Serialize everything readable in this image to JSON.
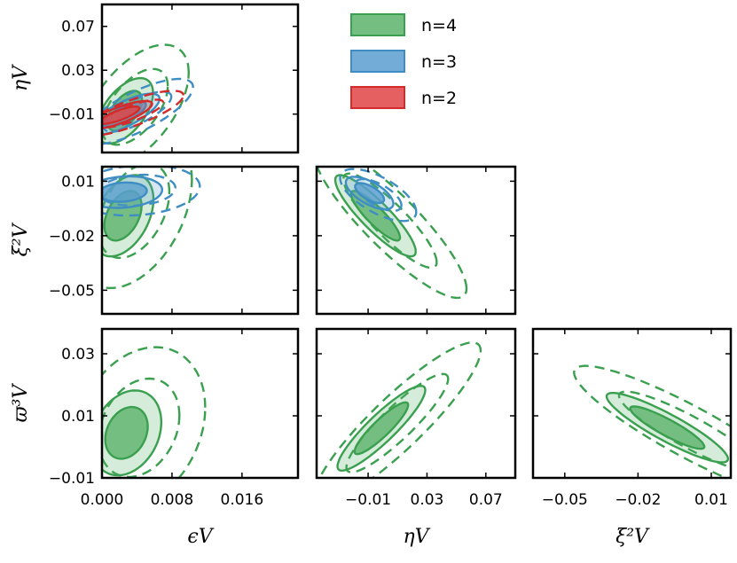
{
  "chart_data": {
    "type": "corner",
    "legend": {
      "placement": "top-right",
      "entries": [
        {
          "label": "n=4",
          "color": "#3aa04f",
          "fill": "#5cb36b"
        },
        {
          "label": "n=3",
          "color": "#3e8ec4",
          "fill": "#5a9fd0"
        },
        {
          "label": "n=2",
          "color": "#d42a2a",
          "fill": "#e04545"
        }
      ]
    },
    "parameters": [
      {
        "key": "epsilon",
        "label": "ϵV",
        "range": [
          0.0,
          0.0224
        ],
        "ticks": [
          0.0,
          0.008,
          0.016
        ],
        "tick_labels": [
          "0.000",
          "0.008",
          "0.016"
        ]
      },
      {
        "key": "eta",
        "label": "ηV",
        "range": [
          -0.045,
          0.09
        ],
        "ticks": [
          -0.01,
          0.03,
          0.07
        ],
        "tick_labels": [
          "−0.01",
          "0.03",
          "0.07"
        ]
      },
      {
        "key": "xi",
        "label": "ξ²V",
        "range": [
          -0.063,
          0.018
        ],
        "ticks": [
          -0.05,
          -0.02,
          0.01
        ],
        "tick_labels": [
          "−0.05",
          "−0.02",
          "0.01"
        ]
      },
      {
        "key": "varpi",
        "label": "ϖ³V",
        "range": [
          -0.01,
          0.038
        ],
        "ticks": [
          -0.01,
          0.01,
          0.03
        ],
        "tick_labels": [
          "−0.01",
          "0.01",
          "0.03"
        ]
      }
    ],
    "panels": [
      {
        "x": "epsilon",
        "y": "eta",
        "contours": [
          {
            "series": "n=4",
            "center": [
              0.0026,
              -0.007
            ],
            "sigma": [
              0.0013,
              0.012
            ],
            "rho": 0.55
          },
          {
            "series": "n=3",
            "center": [
              0.0026,
              -0.01
            ],
            "sigma": [
              0.0016,
              0.0075
            ],
            "rho": 0.75
          },
          {
            "series": "n=2",
            "center": [
              0.002,
              -0.011
            ],
            "sigma": [
              0.0015,
              0.0052
            ],
            "rho": 0.8
          }
        ]
      },
      {
        "x": "epsilon",
        "y": "xi",
        "contours": [
          {
            "series": "n=4",
            "center": [
              0.0024,
              -0.009
            ],
            "sigma": [
              0.0014,
              0.009
            ],
            "rho": 0.4
          },
          {
            "series": "n=3",
            "center": [
              0.0024,
              0.004
            ],
            "sigma": [
              0.0018,
              0.0035
            ],
            "rho": 0.15
          }
        ]
      },
      {
        "x": "eta",
        "y": "xi",
        "contours": [
          {
            "series": "n=4",
            "center": [
              -0.005,
              -0.009
            ],
            "sigma": [
              0.011,
              0.009
            ],
            "rho": -0.88
          },
          {
            "series": "n=3",
            "center": [
              -0.009,
              0.0035
            ],
            "sigma": [
              0.0065,
              0.0036
            ],
            "rho": -0.65
          }
        ]
      },
      {
        "x": "epsilon",
        "y": "varpi",
        "contours": [
          {
            "series": "n=4",
            "center": [
              0.0028,
              0.0045
            ],
            "sigma": [
              0.0016,
              0.0055
            ],
            "rho": 0.25
          }
        ]
      },
      {
        "x": "eta",
        "y": "varpi",
        "contours": [
          {
            "series": "n=4",
            "center": [
              -0.001,
              0.006
            ],
            "sigma": [
              0.012,
              0.0055
            ],
            "rho": 0.9
          }
        ]
      },
      {
        "x": "xi",
        "y": "varpi",
        "contours": [
          {
            "series": "n=4",
            "center": [
              -0.008,
              0.0062
            ],
            "sigma": [
              0.01,
              0.0045
            ],
            "rho": -0.9
          }
        ]
      }
    ]
  }
}
